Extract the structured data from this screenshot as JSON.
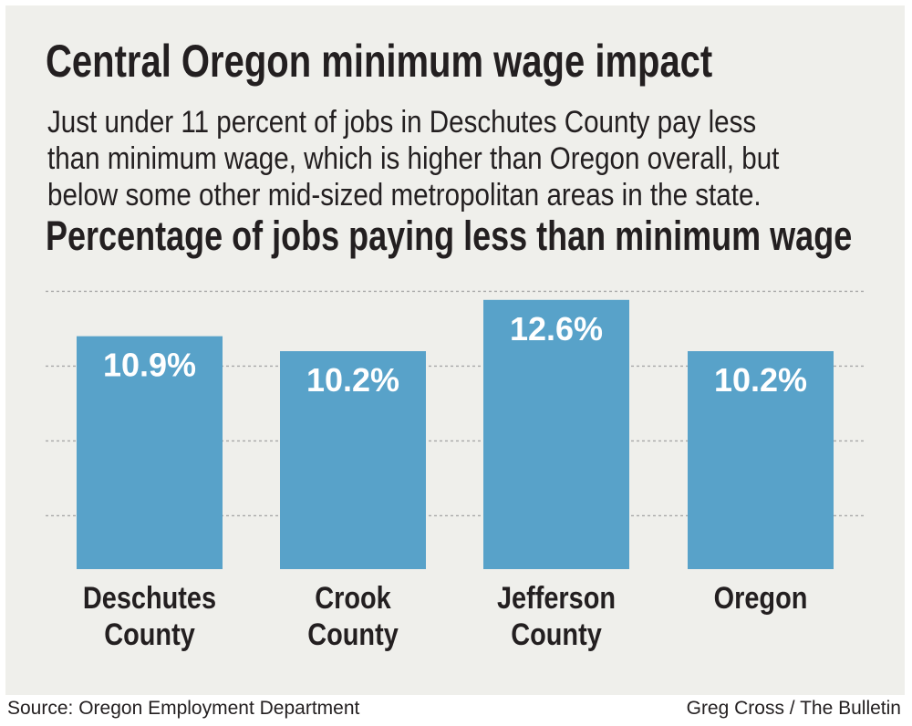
{
  "header": {
    "title": "Central Oregon minimum wage impact",
    "subtitle_lines": [
      "Just under 11 percent of jobs in Deschutes County pay less",
      "than minimum wage, which is higher than Oregon overall, but",
      "below some other mid-sized metropolitan areas in the state."
    ]
  },
  "footer": {
    "source": "Source: Oregon Employment Department",
    "credit": "Greg Cross / The Bulletin"
  },
  "colors": {
    "bar": "#58a2c9",
    "background": "#efefeb",
    "grid": "#a8a8a8",
    "bar_label": "#ffffff"
  },
  "chart_data": {
    "type": "bar",
    "title": "Percentage of jobs paying less than minimum wage",
    "categories": [
      [
        "Deschutes",
        "County"
      ],
      [
        "Crook",
        "County"
      ],
      [
        "Jefferson",
        "County"
      ],
      [
        "Oregon"
      ]
    ],
    "values": [
      10.9,
      10.2,
      12.6,
      10.2
    ],
    "data_labels": [
      "10.9%",
      "10.2%",
      "12.6%",
      "10.2%"
    ],
    "ylim": [
      0,
      14
    ],
    "grid": true,
    "gridlines_at": [
      2.5,
      6,
      9.5,
      13
    ]
  }
}
